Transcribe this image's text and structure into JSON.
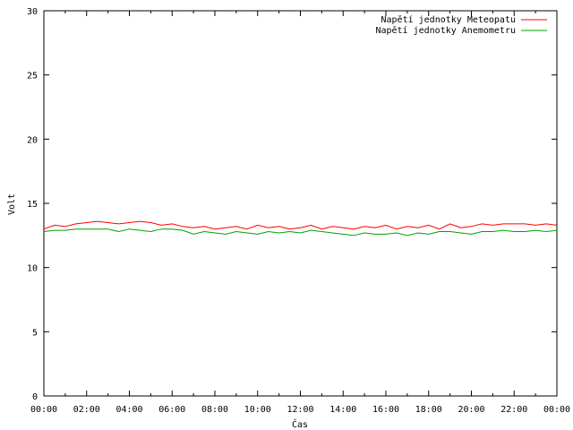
{
  "chart_data": {
    "type": "line",
    "title": "",
    "xlabel": "Čas",
    "ylabel": "Volt",
    "xlim": [
      0,
      24
    ],
    "ylim": [
      0,
      30
    ],
    "xticks": [
      "00:00",
      "02:00",
      "04:00",
      "06:00",
      "08:00",
      "10:00",
      "12:00",
      "14:00",
      "16:00",
      "18:00",
      "20:00",
      "22:00",
      "00:00"
    ],
    "yticks": [
      "0",
      "5",
      "10",
      "15",
      "20",
      "25",
      "30"
    ],
    "grid": false,
    "legend_position": "top-right",
    "colors": {
      "meteopat": "#ff0000",
      "anemometr": "#00a000"
    },
    "series": [
      {
        "name": "Napětí jednotky Meteopatu",
        "color": "#ff0000",
        "x": [
          0,
          0.5,
          1,
          1.5,
          2,
          2.5,
          3,
          3.5,
          4,
          4.5,
          5,
          5.5,
          6,
          6.5,
          7,
          7.5,
          8,
          8.5,
          9,
          9.5,
          10,
          10.5,
          11,
          11.5,
          12,
          12.5,
          13,
          13.5,
          14,
          14.5,
          15,
          15.5,
          16,
          16.5,
          17,
          17.5,
          18,
          18.5,
          19,
          19.5,
          20,
          20.5,
          21,
          21.5,
          22,
          22.5,
          23,
          23.5,
          24
        ],
        "values": [
          13.0,
          13.3,
          13.2,
          13.4,
          13.5,
          13.6,
          13.5,
          13.4,
          13.5,
          13.6,
          13.5,
          13.3,
          13.4,
          13.2,
          13.1,
          13.2,
          13.0,
          13.1,
          13.2,
          13.0,
          13.3,
          13.1,
          13.2,
          13.0,
          13.1,
          13.3,
          13.0,
          13.2,
          13.1,
          13.0,
          13.2,
          13.1,
          13.3,
          13.0,
          13.2,
          13.1,
          13.3,
          13.0,
          13.4,
          13.1,
          13.2,
          13.4,
          13.3,
          13.4,
          13.4,
          13.4,
          13.3,
          13.4,
          13.3
        ]
      },
      {
        "name": "Napětí jednotky Anemometru",
        "color": "#00a000",
        "x": [
          0,
          0.5,
          1,
          1.5,
          2,
          2.5,
          3,
          3.5,
          4,
          4.5,
          5,
          5.5,
          6,
          6.5,
          7,
          7.5,
          8,
          8.5,
          9,
          9.5,
          10,
          10.5,
          11,
          11.5,
          12,
          12.5,
          13,
          13.5,
          14,
          14.5,
          15,
          15.5,
          16,
          16.5,
          17,
          17.5,
          18,
          18.5,
          19,
          19.5,
          20,
          20.5,
          21,
          21.5,
          22,
          22.5,
          23,
          23.5,
          24
        ],
        "values": [
          12.8,
          12.9,
          12.9,
          13.0,
          13.0,
          13.0,
          13.0,
          12.8,
          13.0,
          12.9,
          12.8,
          13.0,
          13.0,
          12.9,
          12.6,
          12.8,
          12.7,
          12.6,
          12.8,
          12.7,
          12.6,
          12.8,
          12.7,
          12.8,
          12.7,
          12.9,
          12.8,
          12.7,
          12.6,
          12.5,
          12.7,
          12.6,
          12.6,
          12.7,
          12.5,
          12.7,
          12.6,
          12.8,
          12.8,
          12.7,
          12.6,
          12.8,
          12.8,
          12.9,
          12.8,
          12.8,
          12.9,
          12.8,
          12.9
        ]
      }
    ]
  }
}
